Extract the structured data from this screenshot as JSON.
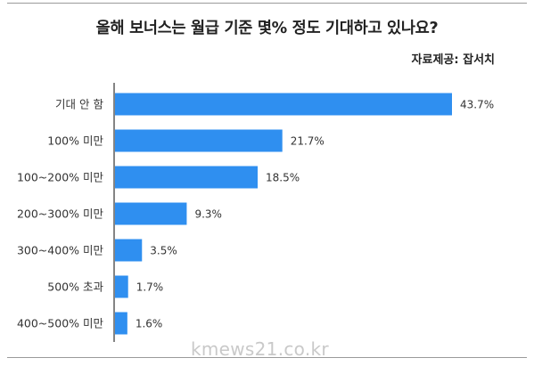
{
  "chart_data": {
    "type": "bar",
    "orientation": "horizontal",
    "title": "올해 보너스는 월급 기준 몇% 정도 기대하고 있나요?",
    "source": "자료제공: 잡서치",
    "categories": [
      "기대 안 함",
      "100% 미만",
      "100~200% 미만",
      "200~300% 미만",
      "300~400% 미만",
      "500% 초과",
      "400~500% 미만"
    ],
    "values": [
      43.7,
      21.7,
      18.5,
      9.3,
      3.5,
      1.7,
      1.6
    ],
    "value_labels": [
      "43.7%",
      "21.7%",
      "18.5%",
      "9.3%",
      "3.5%",
      "1.7%",
      "1.6%"
    ],
    "bar_color": "#2f8ff0",
    "xlim": [
      0,
      45.5
    ],
    "grid": false
  },
  "watermark": "kmews21.co.kr"
}
